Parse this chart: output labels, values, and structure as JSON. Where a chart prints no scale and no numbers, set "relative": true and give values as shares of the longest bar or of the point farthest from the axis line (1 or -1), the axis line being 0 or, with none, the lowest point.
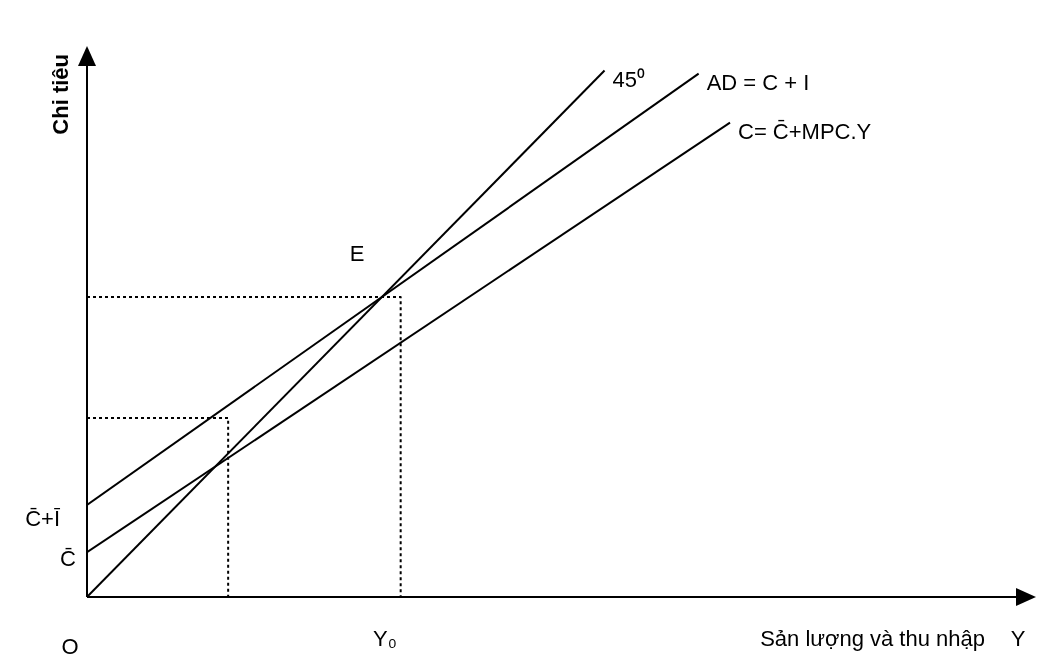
{
  "chart_data": {
    "type": "line",
    "relative": true,
    "xlabel": "Sản lượng và thu nhập",
    "ylabel": "Chi tiêu",
    "categories": [
      null,
      null,
      null,
      null,
      null,
      null,
      null,
      null,
      null,
      null,
      null,
      null,
      null,
      null,
      null,
      null,
      null,
      null,
      null,
      null,
      null,
      null,
      null,
      null,
      null,
      null,
      null,
      null,
      null,
      null,
      null,
      null,
      null,
      null,
      null,
      null,
      null,
      null,
      null,
      null,
      null,
      null,
      null,
      null,
      null,
      null,
      null,
      null,
      null,
      null,
      null,
      null,
      null,
      null,
      null,
      null,
      null,
      null,
      null,
      null,
      null
    ],
    "legend": false,
    "marker": "none",
    "line_style": "solid",
    "series": [
      {
        "name": "45⁰",
        "color": "#000000",
        "values": [
          0,
          null,
          null,
          null,
          null,
          null,
          null,
          null,
          null,
          null,
          null,
          null,
          null,
          null,
          null,
          null,
          null,
          null,
          null,
          null,
          null,
          null,
          null,
          null,
          null,
          null,
          null,
          null,
          null,
          null,
          null,
          null,
          null,
          1,
          null,
          null,
          null,
          null,
          null,
          null,
          null,
          null,
          null,
          null,
          null,
          null,
          null,
          null,
          null,
          null,
          null,
          null,
          null,
          null,
          null,
          null,
          null,
          null,
          null,
          null,
          null
        ]
      },
      {
        "name": "AD = C + I",
        "color": "#000000",
        "values": [
          0.175,
          null,
          null,
          null,
          null,
          null,
          null,
          null,
          null,
          null,
          null,
          null,
          null,
          null,
          null,
          null,
          null,
          null,
          null,
          null,
          null,
          null,
          null,
          null,
          null,
          null,
          null,
          null,
          null,
          null,
          null,
          null,
          null,
          null,
          null,
          null,
          null,
          null,
          null,
          0.994,
          null,
          null,
          null,
          null,
          null,
          null,
          null,
          null,
          null,
          null,
          null,
          null,
          null,
          null,
          null,
          null,
          null,
          null,
          null,
          null,
          null
        ]
      },
      {
        "name": "C= C̄+MPC.Y",
        "color": "#000000",
        "values": [
          0.085,
          null,
          null,
          null,
          null,
          null,
          null,
          null,
          null,
          null,
          null,
          null,
          null,
          null,
          null,
          null,
          null,
          null,
          null,
          null,
          null,
          null,
          null,
          null,
          null,
          null,
          null,
          null,
          null,
          null,
          null,
          null,
          null,
          null,
          null,
          null,
          null,
          null,
          null,
          null,
          null,
          0.901,
          null,
          null,
          null,
          null,
          null,
          null,
          null,
          null,
          null,
          null,
          null,
          null,
          null,
          null,
          null,
          null,
          null,
          null,
          null
        ]
      },
      {
        "type": "step",
        "color": "#000000",
        "line_style": "dotted",
        "values": [
          0.57,
          null,
          null,
          null,
          null,
          null,
          null,
          null,
          null,
          null,
          null,
          null,
          null,
          null,
          null,
          null,
          null,
          null,
          null,
          0.57,
          0,
          null,
          null,
          null,
          null,
          null,
          null,
          null,
          null,
          null,
          null,
          null,
          null,
          null,
          null,
          null,
          null,
          null,
          null,
          null,
          null,
          null,
          null,
          null,
          null,
          null,
          null,
          null,
          null,
          null,
          null,
          null,
          null,
          null,
          null,
          null,
          null,
          null,
          null,
          null,
          null
        ]
      },
      {
        "type": "step",
        "color": "#000000",
        "line_style": "dotted",
        "values": [
          0.34,
          null,
          null,
          null,
          null,
          null,
          null,
          null,
          0.34,
          0,
          null,
          null,
          null,
          null,
          null,
          null,
          null,
          null,
          null,
          null,
          null,
          null,
          null,
          null,
          null,
          null,
          null,
          null,
          null,
          null,
          null,
          null,
          null,
          null,
          null,
          null,
          null,
          null,
          null,
          null,
          null,
          null,
          null,
          null,
          null,
          null,
          null,
          null,
          null,
          null,
          null,
          null,
          null,
          null,
          null,
          null,
          null,
          null,
          null,
          null,
          null
        ]
      }
    ],
    "annotations": [
      "E",
      "C̄+Ī",
      "C̄",
      "O",
      "Y₀",
      "Y"
    ]
  }
}
